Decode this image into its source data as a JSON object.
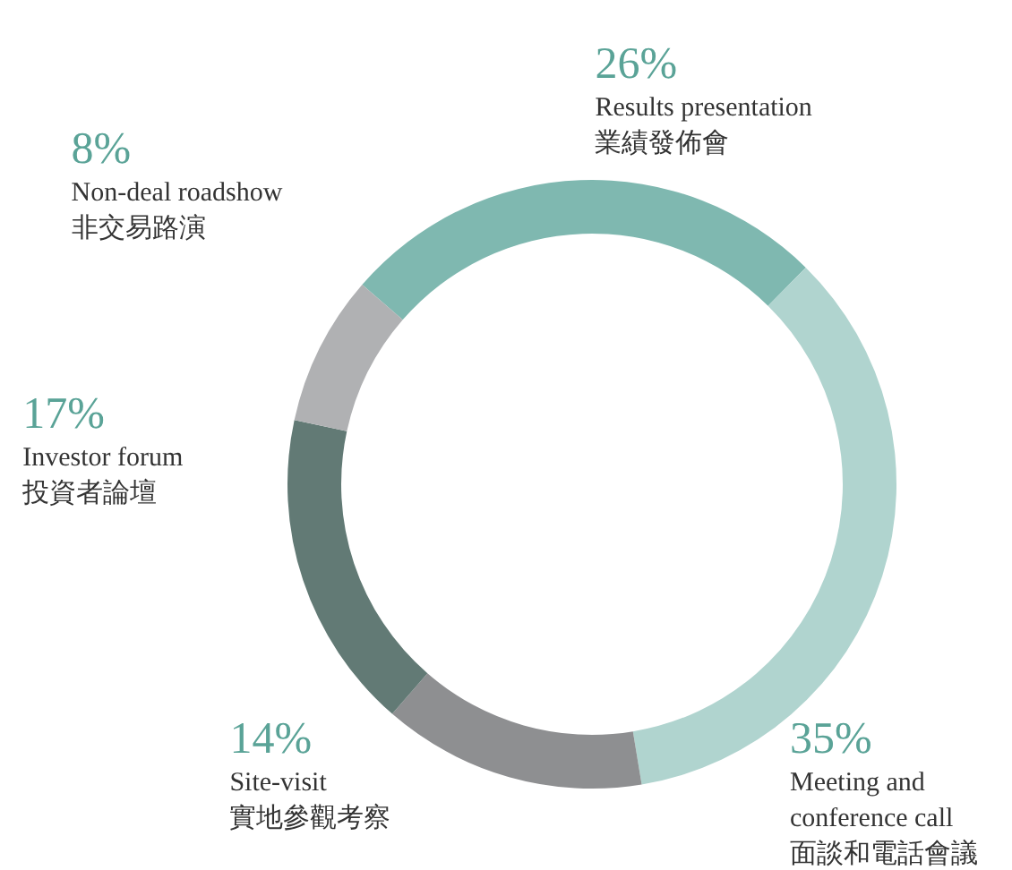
{
  "chart_data": {
    "type": "donut",
    "categories": [
      "Results presentation\n業績發佈會",
      "Meeting and\nconference call\n面談和電話會議",
      "Site-visit\n實地參觀考察",
      "Investor forum\n投資者論壇",
      "Non-deal roadshow\n非交易路演"
    ],
    "values": [
      26,
      35,
      14,
      17,
      8
    ],
    "value_labels": [
      "26%",
      "35%",
      "14%",
      "17%",
      "8%"
    ],
    "colors": [
      "#7fb8b0",
      "#b0d4cf",
      "#8e8f91",
      "#627a75",
      "#b0b1b3"
    ]
  }
}
